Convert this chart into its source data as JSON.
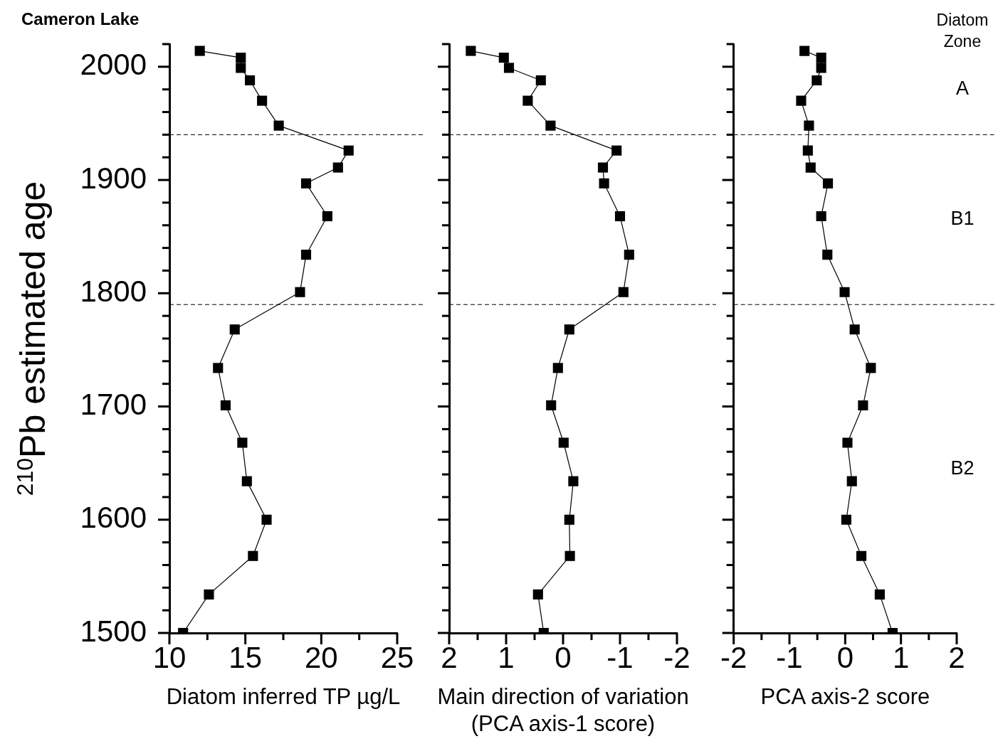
{
  "chart_data": [
    {
      "type": "line",
      "title": "Cameron Lake",
      "ylabel": "$^{210}$Pb estimated age",
      "xlabel": "Diatom inferred TP µg/L",
      "marker": "square",
      "grid": false,
      "legend": false,
      "x": [
        12.0,
        14.7,
        14.7,
        15.3,
        16.1,
        17.2,
        21.8,
        21.1,
        19.0,
        20.4,
        19.0,
        18.6,
        14.3,
        13.2,
        13.7,
        14.8,
        15.1,
        16.4,
        15.5,
        12.6,
        10.9
      ],
      "values": [
        2014,
        2008,
        1999,
        1988,
        1970,
        1948,
        1926,
        1911,
        1897,
        1868,
        1834,
        1801,
        1768,
        1734,
        1701,
        1668,
        1634,
        1600,
        1568,
        1534,
        1500
      ],
      "color": "#000000",
      "xlim": [
        10,
        25
      ],
      "xticks": [
        10,
        {
          "value": 12.5,
          "label": null
        },
        15,
        {
          "value": 17.5,
          "label": null
        },
        20,
        {
          "value": 22.5,
          "label": null
        },
        25
      ],
      "ylim": [
        1500,
        2020
      ],
      "yticks": [
        1500,
        {
          "value": 1520,
          "label": null
        },
        {
          "value": 1540,
          "label": null
        },
        {
          "value": 1560,
          "label": null
        },
        {
          "value": 1580,
          "label": null
        },
        1600,
        {
          "value": 1620,
          "label": null
        },
        {
          "value": 1640,
          "label": null
        },
        {
          "value": 1660,
          "label": null
        },
        {
          "value": 1680,
          "label": null
        },
        1700,
        {
          "value": 1720,
          "label": null
        },
        {
          "value": 1740,
          "label": null
        },
        {
          "value": 1760,
          "label": null
        },
        {
          "value": 1780,
          "label": null
        },
        1800,
        {
          "value": 1820,
          "label": null
        },
        {
          "value": 1840,
          "label": null
        },
        {
          "value": 1860,
          "label": null
        },
        {
          "value": 1880,
          "label": null
        },
        1900,
        {
          "value": 1920,
          "label": null
        },
        {
          "value": 1940,
          "label": null
        },
        {
          "value": 1960,
          "label": null
        },
        {
          "value": 1980,
          "label": null
        },
        2000,
        {
          "value": 2020,
          "label": null
        }
      ],
      "ref_lines": [
        {
          "axis": "y",
          "value": 1940,
          "line_style": "dashed",
          "color": "#000000"
        },
        {
          "axis": "y",
          "value": 1790,
          "line_style": "dashed",
          "color": "#000000"
        }
      ]
    },
    {
      "type": "line",
      "xlabel": "Main direction of variation (PCA axis-1 score)",
      "marker": "square",
      "grid": false,
      "legend": false,
      "tick_labels": "x",
      "x": [
        1.62,
        1.04,
        0.95,
        0.39,
        0.62,
        0.22,
        -0.94,
        -0.7,
        -0.72,
        -1.0,
        -1.16,
        -1.06,
        -0.11,
        0.09,
        0.21,
        -0.01,
        -0.18,
        -0.11,
        -0.12,
        0.44,
        0.34
      ],
      "values": [
        2014,
        2008,
        1999,
        1988,
        1970,
        1948,
        1926,
        1911,
        1897,
        1868,
        1834,
        1801,
        1768,
        1734,
        1701,
        1668,
        1634,
        1600,
        1568,
        1534,
        1500
      ],
      "color": "#000000",
      "xlim": [
        2,
        -2
      ],
      "xticks": [
        2,
        {
          "value": 1.5,
          "label": null
        },
        1,
        {
          "value": 0.5,
          "label": null
        },
        0,
        {
          "value": -0.5,
          "label": null
        },
        -1,
        {
          "value": -1.5,
          "label": null
        },
        -2
      ],
      "ylim": [
        1500,
        2020
      ],
      "yticks": [
        1500,
        {
          "value": 1520,
          "label": null
        },
        {
          "value": 1540,
          "label": null
        },
        {
          "value": 1560,
          "label": null
        },
        {
          "value": 1580,
          "label": null
        },
        1600,
        {
          "value": 1620,
          "label": null
        },
        {
          "value": 1640,
          "label": null
        },
        {
          "value": 1660,
          "label": null
        },
        {
          "value": 1680,
          "label": null
        },
        1700,
        {
          "value": 1720,
          "label": null
        },
        {
          "value": 1740,
          "label": null
        },
        {
          "value": 1760,
          "label": null
        },
        {
          "value": 1780,
          "label": null
        },
        1800,
        {
          "value": 1820,
          "label": null
        },
        {
          "value": 1840,
          "label": null
        },
        {
          "value": 1860,
          "label": null
        },
        {
          "value": 1880,
          "label": null
        },
        1900,
        {
          "value": 1920,
          "label": null
        },
        {
          "value": 1940,
          "label": null
        },
        {
          "value": 1960,
          "label": null
        },
        {
          "value": 1980,
          "label": null
        },
        2000,
        {
          "value": 2020,
          "label": null
        }
      ],
      "ref_lines": [
        {
          "axis": "y",
          "value": 1940,
          "line_style": "dashed",
          "color": "#000000"
        },
        {
          "axis": "y",
          "value": 1790,
          "line_style": "dashed",
          "color": "#000000"
        }
      ]
    },
    {
      "type": "line",
      "xlabel": "PCA axis-2 score",
      "marker": "square",
      "grid": false,
      "legend": false,
      "tick_labels": "x",
      "x": [
        -0.73,
        -0.43,
        -0.43,
        -0.51,
        -0.79,
        -0.65,
        -0.67,
        -0.62,
        -0.31,
        -0.43,
        -0.32,
        -0.01,
        0.17,
        0.46,
        0.32,
        0.04,
        0.12,
        0.02,
        0.29,
        0.62,
        0.85
      ],
      "values": [
        2014,
        2008,
        1999,
        1988,
        1970,
        1948,
        1926,
        1911,
        1897,
        1868,
        1834,
        1801,
        1768,
        1734,
        1701,
        1668,
        1634,
        1600,
        1568,
        1534,
        1500
      ],
      "color": "#000000",
      "xlim": [
        -2,
        2
      ],
      "xticks": [
        -2,
        {
          "value": -1.5,
          "label": null
        },
        -1,
        {
          "value": -0.5,
          "label": null
        },
        0,
        {
          "value": 0.5,
          "label": null
        },
        1,
        {
          "value": 1.5,
          "label": null
        },
        2
      ],
      "ylim": [
        1500,
        2020
      ],
      "yticks": [
        1500,
        {
          "value": 1520,
          "label": null
        },
        {
          "value": 1540,
          "label": null
        },
        {
          "value": 1560,
          "label": null
        },
        {
          "value": 1580,
          "label": null
        },
        1600,
        {
          "value": 1620,
          "label": null
        },
        {
          "value": 1640,
          "label": null
        },
        {
          "value": 1660,
          "label": null
        },
        {
          "value": 1680,
          "label": null
        },
        1700,
        {
          "value": 1720,
          "label": null
        },
        {
          "value": 1740,
          "label": null
        },
        {
          "value": 1760,
          "label": null
        },
        {
          "value": 1780,
          "label": null
        },
        1800,
        {
          "value": 1820,
          "label": null
        },
        {
          "value": 1840,
          "label": null
        },
        {
          "value": 1860,
          "label": null
        },
        {
          "value": 1880,
          "label": null
        },
        1900,
        {
          "value": 1920,
          "label": null
        },
        {
          "value": 1940,
          "label": null
        },
        {
          "value": 1960,
          "label": null
        },
        {
          "value": 1980,
          "label": null
        },
        2000,
        {
          "value": 2020,
          "label": null
        }
      ],
      "ref_lines": [
        {
          "axis": "y",
          "value": 1940,
          "line_style": "dashed",
          "color": "#000000"
        },
        {
          "axis": "y",
          "value": 1790,
          "line_style": "dashed",
          "color": "#000000"
        }
      ],
      "annotations": [
        "Diatom Zone",
        "A",
        "B1",
        "B2"
      ]
    }
  ]
}
